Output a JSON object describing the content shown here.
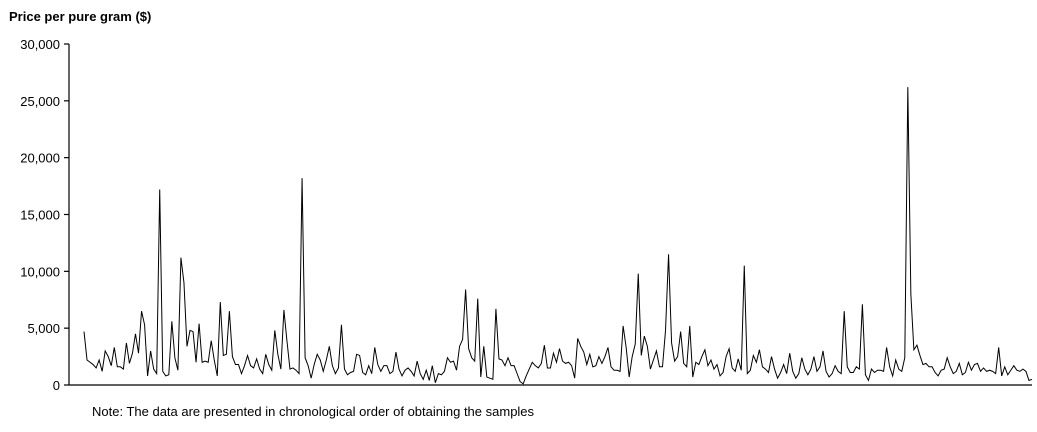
{
  "chart_data": {
    "type": "line",
    "title": "Price per pure gram ($)",
    "note": "Note:  The data are presented in chronological order of obtaining the samples",
    "xlabel": "",
    "ylabel": "",
    "ylim": [
      0,
      30000
    ],
    "yticks": [
      0,
      5000,
      10000,
      15000,
      20000,
      25000,
      30000
    ],
    "ytick_labels": [
      "0",
      "5,000",
      "10,000",
      "15,000",
      "20,000",
      "25,000",
      "30,000"
    ],
    "grid": false,
    "line_color": "#000000",
    "series": [
      {
        "values": [
          4700,
          2200,
          2000,
          1800,
          1500,
          2200,
          1200,
          3000,
          2500,
          1700,
          3300,
          1600,
          1600,
          1400,
          3700,
          1900,
          2800,
          4500,
          2800,
          6500,
          5300,
          800,
          3000,
          1400,
          1000,
          17200,
          1200,
          800,
          900,
          5600,
          2400,
          1300,
          11200,
          9000,
          3400,
          4800,
          4700,
          2000,
          5400,
          2000,
          2100,
          2000,
          3900,
          2200,
          800,
          7300,
          2600,
          2700,
          6500,
          2500,
          1800,
          1800,
          1000,
          1700,
          2600,
          1700,
          1500,
          2300,
          1400,
          1000,
          2700,
          1800,
          1300,
          4800,
          2700,
          1400,
          6600,
          3900,
          1400,
          1500,
          1300,
          1000,
          18200,
          2400,
          1700,
          600,
          1800,
          2700,
          2200,
          1200,
          2200,
          3400,
          1700,
          1000,
          1500,
          5300,
          1400,
          900,
          1100,
          1200,
          2700,
          2600,
          1100,
          900,
          1700,
          1000,
          3300,
          1800,
          1200,
          1700,
          1700,
          1000,
          1200,
          2900,
          1400,
          800,
          1300,
          1500,
          1200,
          800,
          2100,
          1000,
          500,
          1300,
          400,
          1700,
          200,
          1000,
          900,
          1200,
          2400,
          2000,
          2100,
          1300,
          3400,
          4000,
          8400,
          3200,
          2400,
          2100,
          7600,
          700,
          3400,
          700,
          600,
          500,
          6700,
          2300,
          2200,
          1700,
          2400,
          1700,
          1700,
          1000,
          300,
          100,
          800,
          1400,
          2000,
          1700,
          1500,
          1900,
          3500,
          1500,
          1500,
          2800,
          2000,
          3200,
          2100,
          1900,
          2000,
          1700,
          600,
          4100,
          3400,
          2900,
          1800,
          2700,
          1600,
          1700,
          2500,
          1900,
          2500,
          3300,
          1600,
          1300,
          1300,
          1200,
          5200,
          3300,
          700,
          2500,
          3600,
          9800,
          2600,
          4300,
          3400,
          1400,
          2200,
          3000,
          1600,
          1600,
          4800,
          11500,
          3700,
          2100,
          2500,
          4700,
          1900,
          1600,
          5200,
          700,
          2000,
          1800,
          2500,
          3100,
          1700,
          2200,
          1400,
          1800,
          800,
          1100,
          2500,
          3200,
          1500,
          1200,
          2300,
          1300,
          10500,
          1000,
          1300,
          2600,
          2000,
          3100,
          1600,
          1400,
          1100,
          2500,
          1400,
          600,
          1100,
          1800,
          1000,
          2800,
          1200,
          600,
          1000,
          2400,
          1400,
          900,
          1400,
          2500,
          1200,
          1600,
          3000,
          1200,
          700,
          1000,
          1700,
          1200,
          1000,
          6500,
          1600,
          1100,
          1100,
          1600,
          1400,
          7100,
          900,
          400,
          1400,
          1100,
          1300,
          1300,
          1200,
          3300,
          1600,
          800,
          2200,
          1400,
          1200,
          2400,
          26200,
          8000,
          3100,
          3500,
          2600,
          1800,
          1900,
          1600,
          1600,
          1100,
          800,
          1300,
          1400,
          2400,
          1600,
          1000,
          1200,
          1900,
          900,
          1100,
          2000,
          1300,
          1800,
          1900,
          1200,
          1500,
          1200,
          1300,
          1200,
          1000,
          3300,
          800,
          1600,
          900,
          1300,
          1700,
          1300,
          1200,
          1400,
          1200,
          400,
          500
        ]
      }
    ]
  }
}
